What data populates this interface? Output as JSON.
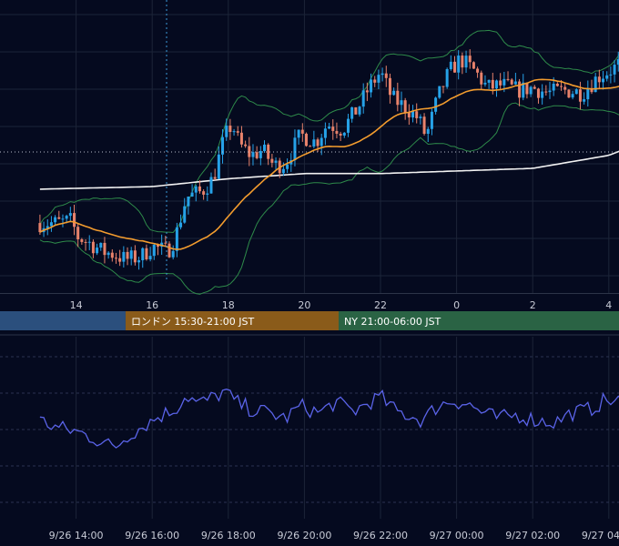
{
  "colors": {
    "background": "#050a1f",
    "grid": "#1c2438",
    "candle_up": "#26a2e8",
    "candle_down": "#e8826b",
    "ma_short": "#f39c2e",
    "ma_long": "#f2f2f2",
    "bollinger": "#2e8a4a",
    "oscillator": "#5a63e8",
    "crosshair": "#3a9ad9",
    "session_tokyo": "#2b4f7d",
    "session_london": "#8a5b1a",
    "session_ny": "#2a6344"
  },
  "chart_data": [
    {
      "type": "candlestick",
      "title": "",
      "x_tick_labels": [
        "14",
        "16",
        "18",
        "20",
        "22",
        "0",
        "2",
        "4"
      ],
      "x_tick_hours": [
        14,
        16,
        18,
        20,
        22,
        24,
        26,
        28
      ],
      "x_range_hours": [
        13.05,
        29.4
      ],
      "y_range": [
        0,
        100
      ],
      "price_hint_points": [
        {
          "t": 13.05,
          "y": 22
        },
        {
          "t": 13.5,
          "y": 22
        },
        {
          "t": 13.9,
          "y": 23
        },
        {
          "t": 14.0,
          "y": 17
        },
        {
          "t": 14.4,
          "y": 14
        },
        {
          "t": 14.7,
          "y": 11
        },
        {
          "t": 15.0,
          "y": 10
        },
        {
          "t": 15.3,
          "y": 8
        },
        {
          "t": 15.7,
          "y": 9
        },
        {
          "t": 16.0,
          "y": 13
        },
        {
          "t": 16.4,
          "y": 11
        },
        {
          "t": 16.6,
          "y": 16
        },
        {
          "t": 16.9,
          "y": 32
        },
        {
          "t": 17.3,
          "y": 34
        },
        {
          "t": 17.6,
          "y": 39
        },
        {
          "t": 17.9,
          "y": 55
        },
        {
          "t": 18.1,
          "y": 60
        },
        {
          "t": 18.3,
          "y": 52
        },
        {
          "t": 18.6,
          "y": 48
        },
        {
          "t": 18.9,
          "y": 50
        },
        {
          "t": 19.2,
          "y": 44
        },
        {
          "t": 19.5,
          "y": 45
        },
        {
          "t": 19.9,
          "y": 56
        },
        {
          "t": 20.3,
          "y": 53
        },
        {
          "t": 20.6,
          "y": 60
        },
        {
          "t": 21.0,
          "y": 58
        },
        {
          "t": 21.4,
          "y": 66
        },
        {
          "t": 21.7,
          "y": 74
        },
        {
          "t": 22.0,
          "y": 80
        },
        {
          "t": 22.3,
          "y": 70
        },
        {
          "t": 22.7,
          "y": 66
        },
        {
          "t": 23.0,
          "y": 62
        },
        {
          "t": 23.2,
          "y": 55
        },
        {
          "t": 23.5,
          "y": 70
        },
        {
          "t": 23.8,
          "y": 80
        },
        {
          "t": 24.1,
          "y": 85
        },
        {
          "t": 24.5,
          "y": 80
        },
        {
          "t": 24.8,
          "y": 74
        },
        {
          "t": 25.2,
          "y": 75
        },
        {
          "t": 25.6,
          "y": 73
        },
        {
          "t": 26.0,
          "y": 74
        },
        {
          "t": 26.4,
          "y": 72
        },
        {
          "t": 26.9,
          "y": 73
        },
        {
          "t": 27.3,
          "y": 72
        },
        {
          "t": 27.7,
          "y": 78
        },
        {
          "t": 28.2,
          "y": 82
        },
        {
          "t": 28.6,
          "y": 88
        },
        {
          "t": 29.0,
          "y": 94
        },
        {
          "t": 29.4,
          "y": 86
        }
      ],
      "series": [
        {
          "kind": "moving_average_short",
          "color": "#f39c2e"
        },
        {
          "kind": "moving_average_long",
          "color": "#f2f2f2"
        },
        {
          "kind": "bollinger_bands",
          "color": "#2e8a4a"
        }
      ]
    },
    {
      "type": "line",
      "title": "",
      "x_tick_labels": [
        "9/26 14:00",
        "9/26 16:00",
        "9/26 18:00",
        "9/26 20:00",
        "9/26 22:00",
        "9/27 00:00",
        "9/27 02:00",
        "9/27 04:00"
      ],
      "x_tick_hours": [
        14,
        16,
        18,
        20,
        22,
        24,
        26,
        28
      ],
      "y_range": [
        0,
        100
      ],
      "hint_points": [
        {
          "t": 13.05,
          "y": 50
        },
        {
          "t": 13.5,
          "y": 42
        },
        {
          "t": 14.0,
          "y": 38
        },
        {
          "t": 14.5,
          "y": 30
        },
        {
          "t": 15.0,
          "y": 20
        },
        {
          "t": 15.4,
          "y": 35
        },
        {
          "t": 15.8,
          "y": 45
        },
        {
          "t": 16.2,
          "y": 55
        },
        {
          "t": 16.6,
          "y": 62
        },
        {
          "t": 16.9,
          "y": 78
        },
        {
          "t": 17.2,
          "y": 68
        },
        {
          "t": 17.6,
          "y": 75
        },
        {
          "t": 17.9,
          "y": 82
        },
        {
          "t": 18.2,
          "y": 70
        },
        {
          "t": 18.6,
          "y": 62
        },
        {
          "t": 19.1,
          "y": 58
        },
        {
          "t": 19.5,
          "y": 52
        },
        {
          "t": 19.9,
          "y": 66
        },
        {
          "t": 20.4,
          "y": 58
        },
        {
          "t": 20.8,
          "y": 70
        },
        {
          "t": 21.3,
          "y": 60
        },
        {
          "t": 21.7,
          "y": 70
        },
        {
          "t": 22.0,
          "y": 76
        },
        {
          "t": 22.4,
          "y": 60
        },
        {
          "t": 22.8,
          "y": 55
        },
        {
          "t": 23.1,
          "y": 50
        },
        {
          "t": 23.5,
          "y": 66
        },
        {
          "t": 23.9,
          "y": 72
        },
        {
          "t": 24.3,
          "y": 68
        },
        {
          "t": 24.7,
          "y": 58
        },
        {
          "t": 25.1,
          "y": 52
        },
        {
          "t": 25.6,
          "y": 56
        },
        {
          "t": 26.1,
          "y": 50
        },
        {
          "t": 26.6,
          "y": 48
        },
        {
          "t": 27.0,
          "y": 58
        },
        {
          "t": 27.5,
          "y": 62
        },
        {
          "t": 27.9,
          "y": 72
        },
        {
          "t": 28.4,
          "y": 70
        },
        {
          "t": 28.9,
          "y": 82
        },
        {
          "t": 29.2,
          "y": 72
        },
        {
          "t": 29.4,
          "y": 62
        }
      ]
    }
  ],
  "sessions": [
    {
      "label": "",
      "start_hour": 13.05,
      "end_hour": 15.3,
      "color": "#2b4f7d"
    },
    {
      "label": "ロンドン 15:30-21:00 JST",
      "start_hour": 15.3,
      "end_hour": 20.9,
      "color": "#8a5b1a"
    },
    {
      "label": "NY 21:00-06:00 JST",
      "start_hour": 20.9,
      "end_hour": 29.4,
      "color": "#2a6344"
    }
  ]
}
